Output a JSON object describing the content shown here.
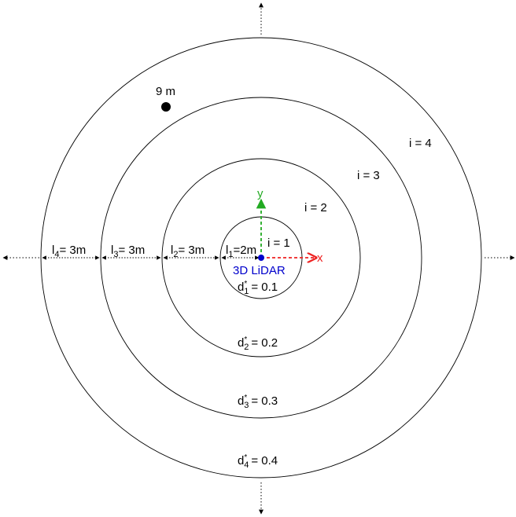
{
  "sensor": {
    "label": "3D LiDAR",
    "color": "#0000cc",
    "x_axis_label": "x",
    "y_axis_label": "y",
    "x_axis_color": "#ee2222",
    "y_axis_color": "#22aa22"
  },
  "point": {
    "label": "9 m"
  },
  "rings": [
    {
      "index_label": "i = 1",
      "width_base": "l",
      "width_sub": "1",
      "width_value": "=2m",
      "d_base": "d",
      "d_sup": "*",
      "d_sub": "1",
      "d_value": "= 0.1"
    },
    {
      "index_label": "i = 2",
      "width_base": "l",
      "width_sub": "2",
      "width_value": "= 3m",
      "d_base": "d",
      "d_sup": "*",
      "d_sub": "2",
      "d_value": "= 0.2"
    },
    {
      "index_label": "i = 3",
      "width_base": "l",
      "width_sub": "3",
      "width_value": "= 3m",
      "d_base": "d",
      "d_sup": "*",
      "d_sub": "3",
      "d_value": "= 0.3"
    },
    {
      "index_label": "i = 4",
      "width_base": "l",
      "width_sub": "4",
      "width_value": "= 3m",
      "d_base": "d",
      "d_sup": "*",
      "d_sub": "4",
      "d_value": "= 0.4"
    }
  ]
}
